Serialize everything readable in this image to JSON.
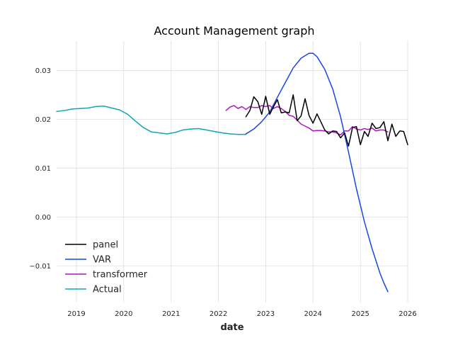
{
  "chart_data": {
    "type": "line",
    "title": "Account Management graph",
    "xlabel": "date",
    "ylabel": "",
    "x_axis": {
      "type": "date",
      "ticks": [
        "2019",
        "2020",
        "2021",
        "2022",
        "2023",
        "2024",
        "2025",
        "2026"
      ],
      "xlim": [
        "2018-08-01",
        "2026-01-01"
      ]
    },
    "y_axis": {
      "ticks": [
        "−0.01",
        "0.00",
        "0.01",
        "0.02",
        "0.03"
      ],
      "tick_values": [
        -0.01,
        0.0,
        0.01,
        0.02,
        0.03
      ],
      "ylim": [
        -0.0175,
        0.036
      ]
    },
    "grid": true,
    "legend": {
      "placement": "lower-left",
      "entries": [
        "panel",
        "VAR",
        "transformer",
        "Actual"
      ]
    },
    "series": [
      {
        "name": "panel",
        "color": "#000000",
        "x": [
          "2022-08-01",
          "2022-09-01",
          "2022-10-01",
          "2022-11-01",
          "2022-12-01",
          "2023-01-01",
          "2023-02-01",
          "2023-03-01",
          "2023-04-01",
          "2023-05-01",
          "2023-06-01",
          "2023-07-01",
          "2023-08-01",
          "2023-09-01",
          "2023-10-01",
          "2023-11-01",
          "2023-12-01",
          "2024-01-01",
          "2024-02-01",
          "2024-03-01",
          "2024-04-01",
          "2024-05-01",
          "2024-06-01",
          "2024-07-01",
          "2024-08-01",
          "2024-09-01",
          "2024-10-01",
          "2024-11-01",
          "2024-12-01",
          "2025-01-01",
          "2025-02-01",
          "2025-03-01",
          "2025-04-01",
          "2025-05-01",
          "2025-06-01",
          "2025-07-01",
          "2025-08-01",
          "2025-09-01",
          "2025-10-01",
          "2025-11-01",
          "2025-12-01",
          "2026-01-01"
        ],
        "values": [
          0.0205,
          0.0218,
          0.0246,
          0.0236,
          0.021,
          0.0247,
          0.021,
          0.0225,
          0.024,
          0.0213,
          0.0215,
          0.0213,
          0.025,
          0.0197,
          0.0207,
          0.0242,
          0.0208,
          0.0192,
          0.0211,
          0.0195,
          0.0178,
          0.017,
          0.0176,
          0.0175,
          0.0162,
          0.0172,
          0.0145,
          0.0183,
          0.0185,
          0.0148,
          0.0175,
          0.0165,
          0.0192,
          0.0181,
          0.0183,
          0.0195,
          0.0156,
          0.019,
          0.0165,
          0.0176,
          0.0175,
          0.0148
        ]
      },
      {
        "name": "VAR",
        "color": "#1746e8",
        "x": [
          "2022-08-01",
          "2022-10-01",
          "2022-12-01",
          "2023-02-01",
          "2023-04-01",
          "2023-06-01",
          "2023-08-01",
          "2023-10-01",
          "2023-12-01",
          "2024-01-01",
          "2024-02-01",
          "2024-04-01",
          "2024-06-01",
          "2024-08-01",
          "2024-10-01",
          "2024-12-01",
          "2025-02-01",
          "2025-04-01",
          "2025-06-01",
          "2025-07-01",
          "2025-08-01"
        ],
        "values": [
          0.017,
          0.018,
          0.0195,
          0.0215,
          0.0245,
          0.0275,
          0.0305,
          0.0325,
          0.0335,
          0.0335,
          0.0328,
          0.0302,
          0.0262,
          0.0205,
          0.0133,
          0.0058,
          -0.001,
          -0.0065,
          -0.0115,
          -0.0135,
          -0.0153
        ]
      },
      {
        "name": "transformer",
        "color": "#b011c4",
        "x": [
          "2022-03-01",
          "2022-04-01",
          "2022-05-01",
          "2022-06-01",
          "2022-07-01",
          "2022-08-01",
          "2022-09-01",
          "2022-10-01",
          "2022-11-01",
          "2022-12-01",
          "2023-01-01",
          "2023-02-01",
          "2023-03-01",
          "2023-04-01",
          "2023-05-01",
          "2023-06-01",
          "2023-07-01",
          "2023-08-01",
          "2023-09-01",
          "2023-10-01",
          "2023-11-01",
          "2023-12-01",
          "2024-01-01",
          "2024-02-01",
          "2024-03-01",
          "2024-04-01",
          "2024-05-01",
          "2024-06-01",
          "2024-07-01",
          "2024-08-01",
          "2024-09-01",
          "2024-10-01",
          "2024-11-01",
          "2024-12-01",
          "2025-01-01",
          "2025-02-01",
          "2025-03-01",
          "2025-04-01",
          "2025-05-01",
          "2025-06-01",
          "2025-07-01",
          "2025-08-01"
        ],
        "values": [
          0.0218,
          0.0225,
          0.0228,
          0.0222,
          0.0226,
          0.022,
          0.0226,
          0.0224,
          0.0224,
          0.0228,
          0.0226,
          0.0228,
          0.0222,
          0.0226,
          0.0222,
          0.0216,
          0.0208,
          0.0206,
          0.0198,
          0.019,
          0.0186,
          0.0182,
          0.0176,
          0.0177,
          0.0177,
          0.0176,
          0.0174,
          0.0174,
          0.0172,
          0.0168,
          0.0176,
          0.0176,
          0.0185,
          0.018,
          0.0178,
          0.0181,
          0.0179,
          0.0182,
          0.0176,
          0.0178,
          0.0178,
          0.0174
        ]
      },
      {
        "name": "Actual",
        "color": "#0ea6b8",
        "x": [
          "2018-08-01",
          "2018-10-01",
          "2018-12-01",
          "2019-02-01",
          "2019-04-01",
          "2019-06-01",
          "2019-08-01",
          "2019-10-01",
          "2019-12-01",
          "2020-02-01",
          "2020-04-01",
          "2020-06-01",
          "2020-08-01",
          "2020-10-01",
          "2020-12-01",
          "2021-02-01",
          "2021-04-01",
          "2021-06-01",
          "2021-08-01",
          "2021-10-01",
          "2021-12-01",
          "2022-02-01",
          "2022-04-01",
          "2022-06-01",
          "2022-08-01"
        ],
        "values": [
          0.0216,
          0.0218,
          0.0221,
          0.0222,
          0.0223,
          0.0226,
          0.0227,
          0.0223,
          0.0219,
          0.021,
          0.0196,
          0.0183,
          0.0174,
          0.0172,
          0.017,
          0.0173,
          0.0178,
          0.018,
          0.0181,
          0.0178,
          0.0175,
          0.0172,
          0.017,
          0.0169,
          0.0169
        ]
      }
    ]
  }
}
